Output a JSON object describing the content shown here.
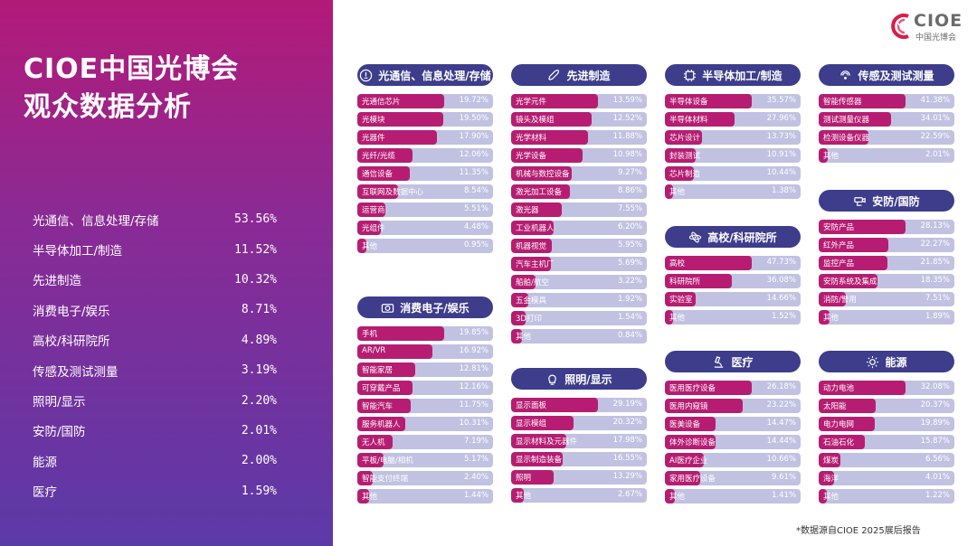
{
  "title": {
    "line1": "CIOE中国光博会",
    "line2": "观众数据分析"
  },
  "logo": {
    "name": "CIOE",
    "sub": "中国光博会"
  },
  "summary": [
    {
      "label": "光通信、信息处理/存储",
      "value": "53.56%"
    },
    {
      "label": "半导体加工/制造",
      "value": "11.52%"
    },
    {
      "label": "先进制造",
      "value": "10.32%"
    },
    {
      "label": "消费电子/娱乐",
      "value": "8.71%"
    },
    {
      "label": "高校/科研院所",
      "value": "4.89%"
    },
    {
      "label": "传感及测试测量",
      "value": "3.19%"
    },
    {
      "label": "照明/显示",
      "value": "2.20%"
    },
    {
      "label": "安防/国防",
      "value": "2.01%"
    },
    {
      "label": "能源",
      "value": "2.00%"
    },
    {
      "label": "医疗",
      "value": "1.59%"
    }
  ],
  "colors": {
    "header": "#3d3d8c",
    "fill": "#b61d72",
    "track": "#c1c1e2"
  },
  "chart_data": [
    {
      "type": "bar",
      "title": "光通信、信息处理/存储",
      "icon": "lightbulb-pin-icon",
      "categories": [
        "光通信芯片",
        "光模块",
        "光器件",
        "光纤/光缆",
        "通信设备",
        "互联网及数据中心",
        "运营商",
        "光组件",
        "其他"
      ],
      "values": [
        19.72,
        19.5,
        17.9,
        12.06,
        11.35,
        8.54,
        5.51,
        4.48,
        0.95
      ]
    },
    {
      "type": "bar",
      "title": "先进制造",
      "icon": "rocket-icon",
      "categories": [
        "光学元件",
        "镜头及模组",
        "光学材料",
        "光学设备",
        "机械与数控设备",
        "激光加工设备",
        "激光器",
        "工业机器人",
        "机器视觉",
        "汽车主机厂",
        "船舶/航空",
        "五金模具",
        "3D打印",
        "其他"
      ],
      "values": [
        13.59,
        12.52,
        11.88,
        10.98,
        9.27,
        8.86,
        7.55,
        6.2,
        5.95,
        5.69,
        3.22,
        1.92,
        1.54,
        0.84
      ]
    },
    {
      "type": "bar",
      "title": "半导体加工/制造",
      "icon": "chip-icon",
      "categories": [
        "半导体设备",
        "半导体材料",
        "芯片设计",
        "封装测试",
        "芯片制造",
        "其他"
      ],
      "values": [
        35.57,
        27.96,
        13.73,
        10.91,
        10.44,
        1.38
      ]
    },
    {
      "type": "bar",
      "title": "传感及测试测量",
      "icon": "sensor-icon",
      "categories": [
        "智能传感器",
        "测试测量仪器",
        "检测设备仪器",
        "其他"
      ],
      "values": [
        41.38,
        34.01,
        22.59,
        2.01
      ]
    },
    {
      "type": "bar",
      "title": "安防/国防",
      "icon": "camera-security-icon",
      "categories": [
        "安防产品",
        "红外产品",
        "监控产品",
        "安防系统及集成",
        "消防/警用",
        "其他"
      ],
      "values": [
        28.13,
        22.27,
        21.85,
        18.35,
        7.51,
        1.89
      ]
    },
    {
      "type": "bar",
      "title": "高校/科研院所",
      "icon": "atom-icon",
      "categories": [
        "高校",
        "科研院所",
        "实验室",
        "其他"
      ],
      "values": [
        47.73,
        36.08,
        14.66,
        1.52
      ]
    },
    {
      "type": "bar",
      "title": "消费电子/娱乐",
      "icon": "camera-icon",
      "categories": [
        "手机",
        "AR/VR",
        "智能家居",
        "可穿戴产品",
        "智能汽车",
        "服务机器人",
        "无人机",
        "平板/电脑/相机",
        "智能支付终端",
        "其他"
      ],
      "values": [
        19.85,
        16.92,
        12.81,
        12.16,
        11.75,
        10.31,
        7.19,
        5.17,
        2.4,
        1.44
      ]
    },
    {
      "type": "bar",
      "title": "照明/显示",
      "icon": "bulb-icon",
      "categories": [
        "显示面板",
        "显示模组",
        "显示材料及元器件",
        "显示制造装备",
        "照明",
        "其他"
      ],
      "values": [
        29.19,
        20.32,
        17.98,
        16.55,
        13.29,
        2.67
      ]
    },
    {
      "type": "bar",
      "title": "医疗",
      "icon": "microscope-icon",
      "categories": [
        "医用医疗设备",
        "医用内窥镜",
        "医美设备",
        "体外诊断设备",
        "AI医疗企业",
        "家用医疗设备",
        "其他"
      ],
      "values": [
        26.18,
        23.22,
        14.47,
        14.44,
        10.66,
        9.61,
        1.41
      ]
    },
    {
      "type": "bar",
      "title": "能源",
      "icon": "sun-icon",
      "categories": [
        "动力电池",
        "太阳能",
        "电力电网",
        "石油石化",
        "煤炭",
        "海洋",
        "其他"
      ],
      "values": [
        32.08,
        20.37,
        19.89,
        15.87,
        6.56,
        4.01,
        1.22
      ]
    }
  ],
  "source_note": "*数据源自CIOE 2025展后报告"
}
